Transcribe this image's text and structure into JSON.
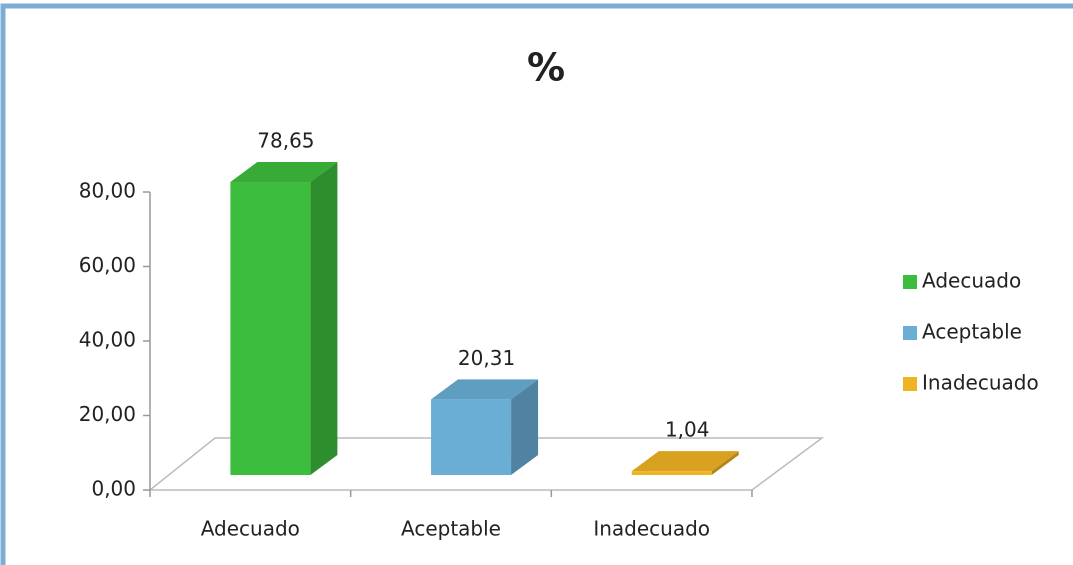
{
  "chart_data": {
    "type": "bar3d",
    "title": "%",
    "categories": [
      "Adecuado",
      "Aceptable",
      "Inadecuado"
    ],
    "values": [
      78.65,
      20.31,
      1.04
    ],
    "value_labels": [
      "78,65",
      "20,31",
      "1,04"
    ],
    "colors": [
      "#3dbd3d",
      "#6aaed6",
      "#f0b323"
    ],
    "ylim": [
      0,
      80
    ],
    "yticks": [
      {
        "value": 0,
        "label": "0,00"
      },
      {
        "value": 20,
        "label": "20,00"
      },
      {
        "value": 40,
        "label": "40,00"
      },
      {
        "value": 60,
        "label": "60,00"
      },
      {
        "value": 80,
        "label": "80,00"
      }
    ],
    "legend": "right"
  }
}
